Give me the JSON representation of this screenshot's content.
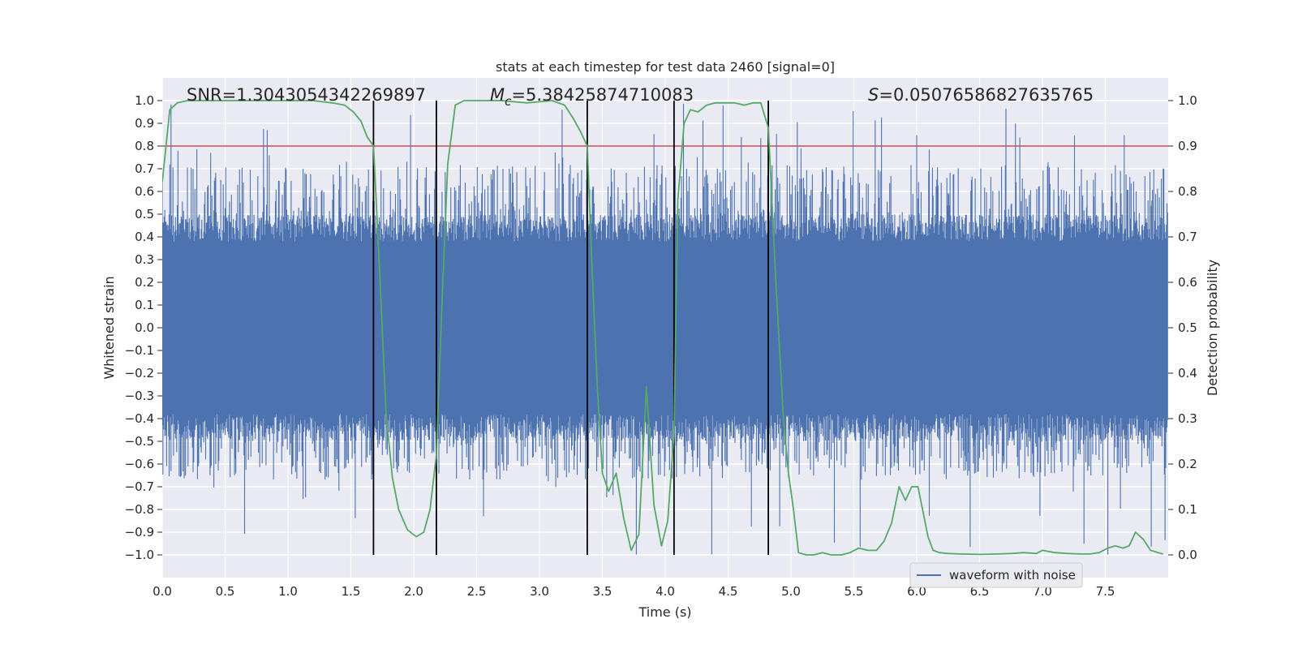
{
  "chart_data": {
    "type": "line",
    "title": "stats at each timestep for test data 2460 [signal=0]",
    "xlabel": "Time (s)",
    "ylabel_left": "Whitened strain",
    "ylabel_right": "Detection probability",
    "annotations": {
      "snr": "SNR=1.3043054342269897",
      "mc_symbol": "M",
      "mc_sub": "c",
      "mc_value": "=5.38425874710083",
      "s_symbol": "S",
      "s_value": "=0.05076586827635765"
    },
    "legend": {
      "label": "waveform with noise",
      "placement": "lower-right"
    },
    "grid": true,
    "xlim": [
      0.0,
      8.0
    ],
    "ylim_left": [
      -1.1,
      1.1
    ],
    "ylim_right": [
      -0.05,
      1.05
    ],
    "xticks": [
      0.0,
      0.5,
      1.0,
      1.5,
      2.0,
      2.5,
      3.0,
      3.5,
      4.0,
      4.5,
      5.0,
      5.5,
      6.0,
      6.5,
      7.0,
      7.5
    ],
    "xtick_labels": [
      "0.0",
      "0.5",
      "1.0",
      "1.5",
      "2.0",
      "2.5",
      "3.0",
      "3.5",
      "4.0",
      "4.5",
      "5.0",
      "5.5",
      "6.0",
      "6.5",
      "7.0",
      "7.5"
    ],
    "yticks_left": [
      1.0,
      0.9,
      0.8,
      0.7,
      0.6,
      0.5,
      0.4,
      0.3,
      0.2,
      0.1,
      0.0,
      -0.1,
      -0.2,
      -0.3,
      -0.4,
      -0.5,
      -0.6,
      -0.7,
      -0.8,
      -0.9,
      -1.0
    ],
    "ytick_labels_left": [
      "1.0",
      "0.9",
      "0.8",
      "0.7",
      "0.6",
      "0.5",
      "0.4",
      "0.3",
      "0.2",
      "0.1",
      "0.0",
      "−0.1",
      "−0.2",
      "−0.3",
      "−0.4",
      "−0.5",
      "−0.6",
      "−0.7",
      "−0.8",
      "−0.9",
      "−1.0"
    ],
    "yticks_right": [
      1.0,
      0.9,
      0.8,
      0.7,
      0.6,
      0.5,
      0.4,
      0.3,
      0.2,
      0.1,
      0.0
    ],
    "ytick_labels_right": [
      "1.0",
      "0.9",
      "0.8",
      "0.7",
      "0.6",
      "0.5",
      "0.4",
      "0.3",
      "0.2",
      "0.1",
      "0.0"
    ],
    "threshold": {
      "value": 0.9,
      "color": "#c44e52"
    },
    "detection_boundaries": [
      1.68,
      2.18,
      3.38,
      4.07,
      4.82
    ],
    "waveform": {
      "name": "waveform with noise",
      "color": "#4c72b0",
      "n_samples": 1600,
      "seed": 2460,
      "core_amplitude": 0.38,
      "spike_range": [
        -1.0,
        0.99
      ]
    },
    "detection_probability": {
      "color": "#55a868",
      "x": [
        0.0,
        0.06,
        0.12,
        0.2,
        0.4,
        0.6,
        0.8,
        1.0,
        1.2,
        1.35,
        1.45,
        1.52,
        1.58,
        1.63,
        1.68,
        1.73,
        1.78,
        1.83,
        1.88,
        1.95,
        2.02,
        2.08,
        2.13,
        2.18,
        2.22,
        2.27,
        2.33,
        2.4,
        2.5,
        2.7,
        2.9,
        3.1,
        3.2,
        3.27,
        3.33,
        3.38,
        3.42,
        3.46,
        3.5,
        3.55,
        3.61,
        3.67,
        3.73,
        3.79,
        3.85,
        3.91,
        3.97,
        4.02,
        4.07,
        4.1,
        4.15,
        4.2,
        4.26,
        4.33,
        4.4,
        4.47,
        4.55,
        4.63,
        4.7,
        4.76,
        4.82,
        4.88,
        4.94,
        4.98,
        5.02,
        5.06,
        5.12,
        5.18,
        5.25,
        5.32,
        5.4,
        5.47,
        5.54,
        5.61,
        5.68,
        5.74,
        5.8,
        5.86,
        5.91,
        5.96,
        6.01,
        6.05,
        6.09,
        6.13,
        6.18,
        6.25,
        6.35,
        6.5,
        6.65,
        6.75,
        6.85,
        6.95,
        7.0,
        7.1,
        7.2,
        7.3,
        7.38,
        7.45,
        7.52,
        7.58,
        7.64,
        7.69,
        7.74,
        7.8,
        7.86,
        7.92,
        7.96
      ],
      "y": [
        0.82,
        0.98,
        0.995,
        1.0,
        1.0,
        1.0,
        1.0,
        1.0,
        1.0,
        0.995,
        0.99,
        0.975,
        0.955,
        0.92,
        0.9,
        0.62,
        0.31,
        0.17,
        0.1,
        0.055,
        0.04,
        0.05,
        0.1,
        0.22,
        0.52,
        0.86,
        0.99,
        1.0,
        1.0,
        1.0,
        0.995,
        1.0,
        0.99,
        0.96,
        0.93,
        0.9,
        0.62,
        0.37,
        0.18,
        0.14,
        0.18,
        0.08,
        0.01,
        0.045,
        0.37,
        0.11,
        0.02,
        0.075,
        0.27,
        0.78,
        0.95,
        0.98,
        0.975,
        0.99,
        0.995,
        0.995,
        0.995,
        0.99,
        0.995,
        0.995,
        0.94,
        0.6,
        0.3,
        0.18,
        0.1,
        0.005,
        0.0,
        0.0,
        0.005,
        0.0,
        0.0,
        0.005,
        0.015,
        0.01,
        0.01,
        0.03,
        0.07,
        0.15,
        0.12,
        0.15,
        0.15,
        0.095,
        0.04,
        0.01,
        0.005,
        0.003,
        0.002,
        0.001,
        0.002,
        0.003,
        0.005,
        0.003,
        0.01,
        0.005,
        0.003,
        0.002,
        0.002,
        0.005,
        0.015,
        0.02,
        0.015,
        0.02,
        0.05,
        0.035,
        0.01,
        0.005,
        0.002
      ]
    }
  }
}
